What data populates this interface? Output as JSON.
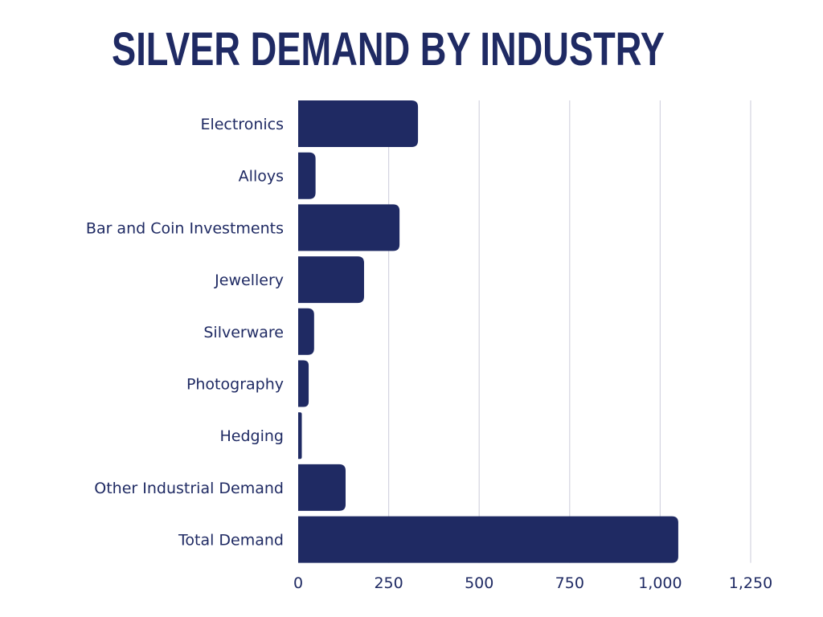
{
  "chart_data": {
    "type": "bar",
    "orientation": "horizontal",
    "title": "SILVER DEMAND BY INDUSTRY",
    "xlabel": "",
    "ylabel": "",
    "categories": [
      "Electronics",
      "Alloys",
      "Bar and Coin Investments",
      "Jewellery",
      "Silverware",
      "Photography",
      "Hedging",
      "Other Industrial Demand",
      "Total Demand"
    ],
    "values": [
      331,
      48,
      280,
      182,
      44,
      29,
      10,
      131,
      1050
    ],
    "xlim": [
      0,
      1250
    ],
    "ticks": [
      0,
      250,
      500,
      750,
      1000,
      1250
    ],
    "tick_labels": [
      "0",
      "250",
      "500",
      "750",
      "1,000",
      "1,250"
    ],
    "grid": true,
    "bar_color": "#1f2a63",
    "grid_color": "#d4d4e0"
  }
}
